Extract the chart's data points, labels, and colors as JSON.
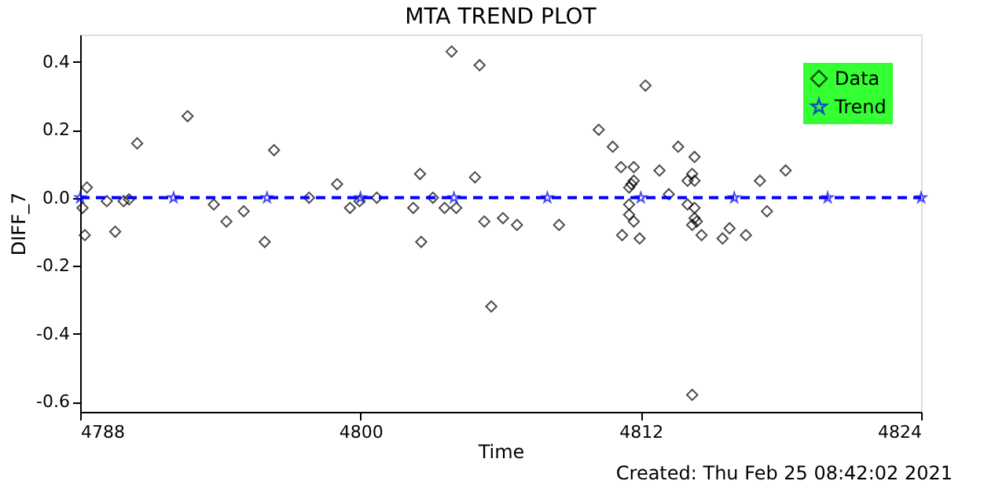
{
  "chart_data": {
    "type": "scatter",
    "title": "MTA TREND PLOT",
    "xlabel": "Time",
    "ylabel": "DIFF_7",
    "annotations": [
      "Created: Thu Feb 25 08:42:02 2021"
    ],
    "xlim": [
      4788,
      4824
    ],
    "xticks": [
      4788,
      4800,
      4812,
      4824
    ],
    "ylim": [
      -0.63,
      0.48
    ],
    "yticks": [
      -0.6,
      -0.4,
      -0.2,
      {
        "value": 0,
        "label": "0.0"
      },
      0.2,
      0.4
    ],
    "grid": false,
    "legend": "top right",
    "series": [
      {
        "name": "Data",
        "marker": "diamond",
        "color": "#000000",
        "x": [
          4788.29,
          4788.1,
          4788.2,
          4789.14,
          4789.5,
          4789.86,
          4790.09,
          4790.44,
          4792.6,
          4793.72,
          4794.26,
          4795.0,
          4796.3,
          4795.9,
          4797.8,
          4799.0,
          4799.55,
          4799.96,
          4800.7,
          4802.55,
          4802.26,
          4802.6,
          4803.1,
          4803.6,
          4804.1,
          4803.9,
          4805.1,
          4804.9,
          4805.3,
          4805.6,
          4806.1,
          4806.7,
          4808.5,
          4810.2,
          4810.8,
          4811.15,
          4811.7,
          4812.2,
          4812.8,
          4811.6,
          4811.7,
          4811.5,
          4811.5,
          4811.5,
          4811.7,
          4811.2,
          4811.95,
          4813.6,
          4814.3,
          4813.2,
          4814.2,
          4814.3,
          4814.0,
          4814.0,
          4814.3,
          4814.3,
          4814.4,
          4814.2,
          4814.6,
          4815.5,
          4815.8,
          4816.5,
          4817.1,
          4817.4,
          4818.2,
          4814.2
        ],
        "values": [
          0.03,
          -0.03,
          -0.11,
          -0.01,
          -0.1,
          -0.01,
          -0.005,
          0.16,
          0.24,
          -0.02,
          -0.07,
          -0.04,
          0.14,
          -0.13,
          0.0,
          0.04,
          -0.03,
          -0.01,
          0.0,
          0.07,
          -0.03,
          -0.13,
          0.0,
          -0.03,
          -0.03,
          0.43,
          0.39,
          0.06,
          -0.07,
          -0.32,
          -0.06,
          -0.08,
          -0.08,
          0.2,
          0.15,
          0.09,
          0.09,
          0.33,
          0.08,
          0.04,
          0.05,
          0.03,
          -0.02,
          -0.05,
          -0.07,
          -0.11,
          -0.12,
          0.15,
          0.12,
          0.01,
          0.07,
          0.05,
          0.05,
          -0.02,
          -0.03,
          -0.06,
          -0.07,
          -0.08,
          -0.11,
          -0.12,
          -0.09,
          -0.11,
          0.05,
          -0.04,
          0.08,
          -0.58
        ]
      },
      {
        "name": "Trend",
        "type": "line",
        "marker": "star",
        "line_style": "dashed",
        "color": "#0000ff",
        "x": [
          4788,
          4792,
          4796,
          4800,
          4804,
          4808,
          4812,
          4816,
          4820,
          4824
        ],
        "values": [
          0.0,
          0.0,
          0.0,
          0.0,
          0.0,
          0.0,
          0.0,
          0.0,
          0.0,
          0.0
        ]
      }
    ]
  }
}
